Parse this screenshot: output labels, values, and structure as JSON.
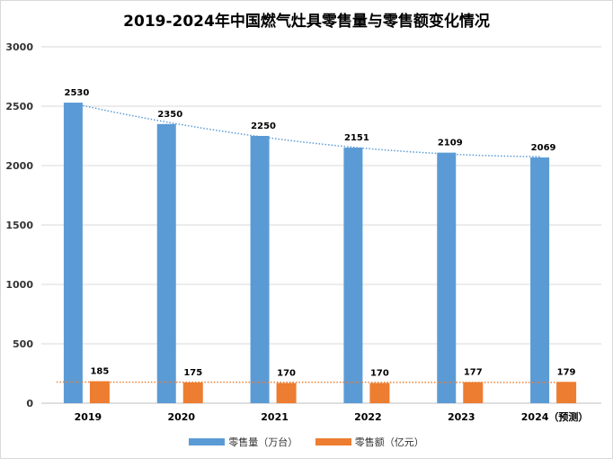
{
  "chart_data": {
    "type": "bar",
    "title": "2019-2024年中国燃气灶具零售量与零售额变化情况",
    "categories": [
      "2019",
      "2020",
      "2021",
      "2022",
      "2023",
      "2024（预测）"
    ],
    "series": [
      {
        "name": "零售量（万台）",
        "values": [
          2530,
          2350,
          2250,
          2151,
          2109,
          2069
        ],
        "color": "#5b9bd5"
      },
      {
        "name": "零售额（亿元）",
        "values": [
          185,
          175,
          170,
          170,
          177,
          179
        ],
        "color": "#ed7d31"
      }
    ],
    "trendlines": [
      {
        "series": "零售量（万台）",
        "style": "dotted",
        "type": "polynomial"
      },
      {
        "series": "零售额（亿元）",
        "style": "dotted",
        "type": "linear"
      }
    ],
    "yticks": [
      0,
      500,
      1000,
      1500,
      2000,
      2500,
      3000
    ],
    "ylim": [
      0,
      3000
    ],
    "grid": true,
    "legend": "bottom",
    "xlabel": "",
    "ylabel": ""
  }
}
